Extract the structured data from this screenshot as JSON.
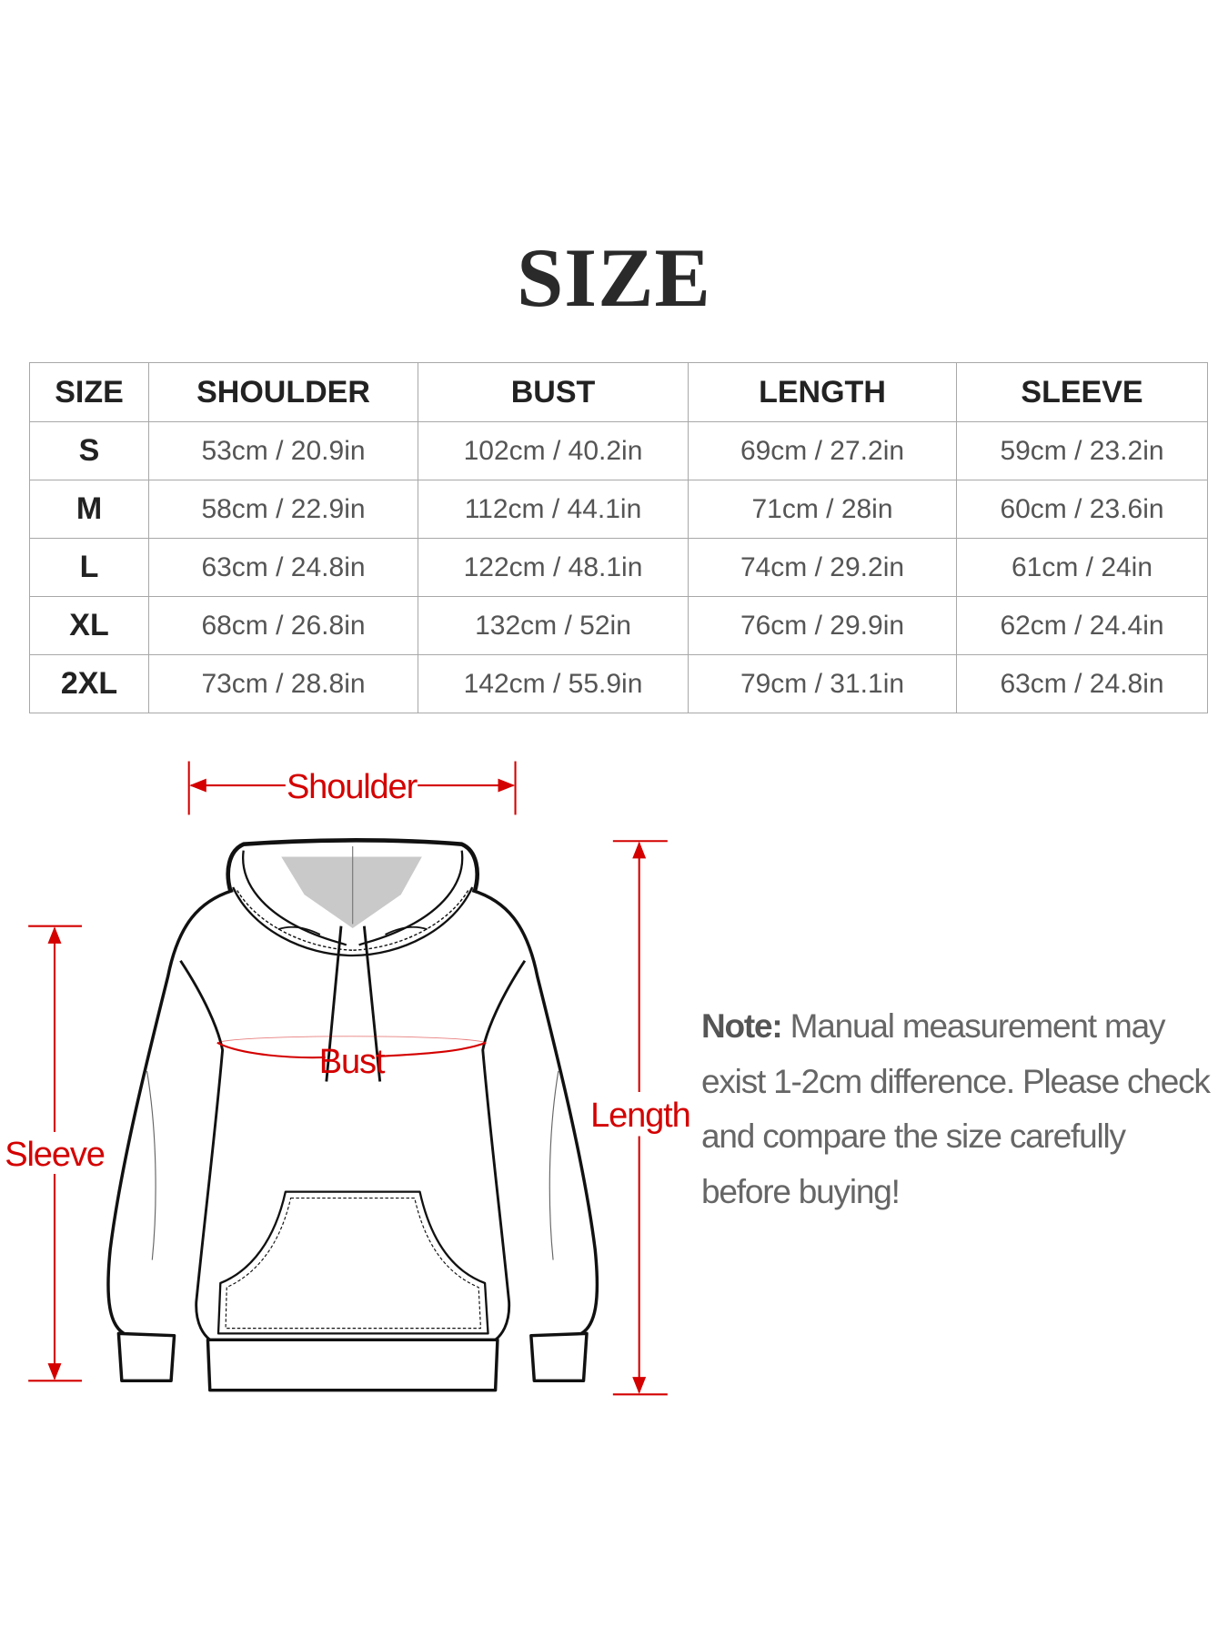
{
  "title": "SIZE",
  "table": {
    "headers": [
      "SIZE",
      "SHOULDER",
      "BUST",
      "LENGTH",
      "SLEEVE"
    ],
    "rows": [
      [
        "S",
        "53cm / 20.9in",
        "102cm / 40.2in",
        "69cm / 27.2in",
        "59cm / 23.2in"
      ],
      [
        "M",
        "58cm / 22.9in",
        "112cm / 44.1in",
        "71cm / 28in",
        "60cm / 23.6in"
      ],
      [
        "L",
        "63cm / 24.8in",
        "122cm / 48.1in",
        "74cm / 29.2in",
        "61cm / 24in"
      ],
      [
        "XL",
        "68cm / 26.8in",
        "132cm / 52in",
        "76cm / 29.9in",
        "62cm / 24.4in"
      ],
      [
        "2XL",
        "73cm / 28.8in",
        "142cm / 55.9in",
        "79cm / 31.1in",
        "63cm / 24.8in"
      ]
    ]
  },
  "diagram": {
    "labels": {
      "shoulder": "Shoulder",
      "bust": "Bust",
      "length": "Length",
      "sleeve": "Sleeve"
    },
    "accent_color": "#d40000"
  },
  "note": {
    "label": "Note:",
    "text": "Manual measurement may exist 1-2cm difference. Please check and compare the size carefully before buying!"
  }
}
